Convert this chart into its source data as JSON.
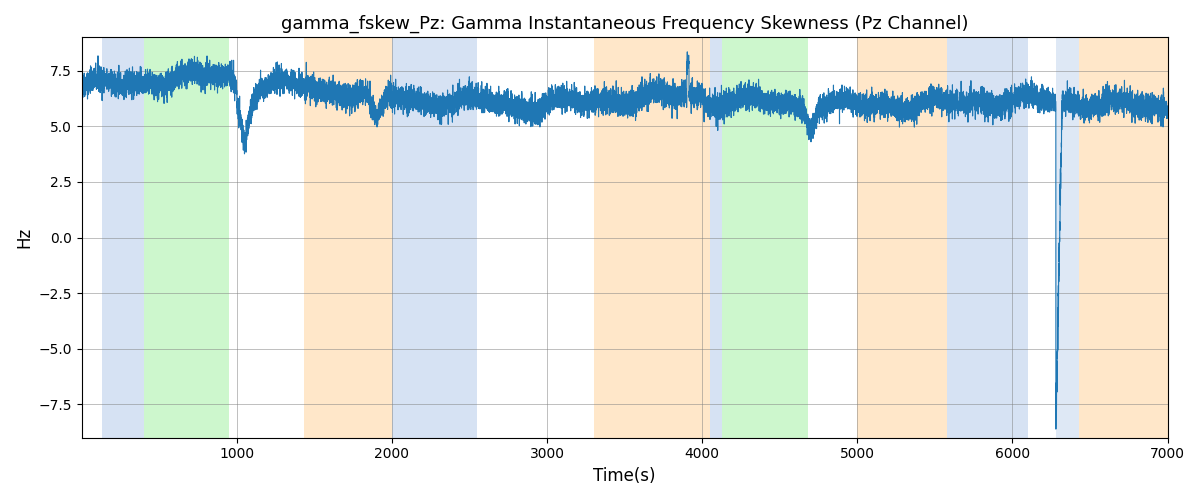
{
  "title": "gamma_fskew_Pz: Gamma Instantaneous Frequency Skewness (Pz Channel)",
  "xlabel": "Time(s)",
  "ylabel": "Hz",
  "xlim": [
    0,
    7000
  ],
  "ylim": [
    -9,
    9
  ],
  "yticks": [
    -7.5,
    -5.0,
    -2.5,
    0.0,
    2.5,
    5.0,
    7.5
  ],
  "xticks": [
    1000,
    2000,
    3000,
    4000,
    5000,
    6000,
    7000
  ],
  "background_regions": [
    {
      "xstart": 130,
      "xend": 400,
      "color": "#aec6e8",
      "alpha": 0.5
    },
    {
      "xstart": 400,
      "xend": 950,
      "color": "#90ee90",
      "alpha": 0.45
    },
    {
      "xstart": 1430,
      "xend": 2000,
      "color": "#ffd59e",
      "alpha": 0.55
    },
    {
      "xstart": 2000,
      "xend": 2550,
      "color": "#aec6e8",
      "alpha": 0.5
    },
    {
      "xstart": 3300,
      "xend": 4050,
      "color": "#ffd59e",
      "alpha": 0.55
    },
    {
      "xstart": 4050,
      "xend": 4130,
      "color": "#aec6e8",
      "alpha": 0.5
    },
    {
      "xstart": 4130,
      "xend": 4680,
      "color": "#90ee90",
      "alpha": 0.45
    },
    {
      "xstart": 5000,
      "xend": 5580,
      "color": "#ffd59e",
      "alpha": 0.55
    },
    {
      "xstart": 5580,
      "xend": 6100,
      "color": "#aec6e8",
      "alpha": 0.5
    },
    {
      "xstart": 6280,
      "xend": 6430,
      "color": "#aec6e8",
      "alpha": 0.4
    },
    {
      "xstart": 6430,
      "xend": 7000,
      "color": "#ffd59e",
      "alpha": 0.55
    }
  ],
  "line_color": "#1f77b4",
  "line_width": 0.8,
  "grid": true,
  "figsize": [
    12,
    5
  ],
  "dpi": 100,
  "seed": 42
}
